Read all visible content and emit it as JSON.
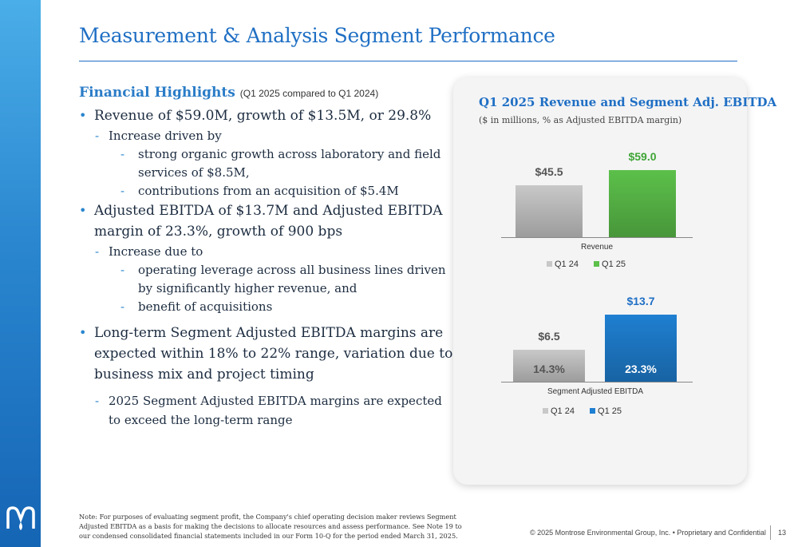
{
  "slide": {
    "title": "Measurement & Analysis Segment Performance",
    "highlights_heading": "Financial Highlights",
    "highlights_subheading": "(Q1 2025 compared to Q1 2024)",
    "bullets": {
      "b1": "Revenue of $59.0M, growth of $13.5M, or 29.8%",
      "b1_sub": "Increase driven by",
      "b1_sub_a": "strong organic growth across laboratory and field services of $8.5M,",
      "b1_sub_b": "contributions from an acquisition of $5.4M",
      "b2": "Adjusted EBITDA of $13.7M and Adjusted EBITDA margin of 23.3%, growth of 900 bps",
      "b2_sub": "Increase due to",
      "b2_sub_a": "operating leverage across all business lines driven by significantly higher revenue, and",
      "b2_sub_b": "benefit of acquisitions",
      "b3": "Long-term Segment Adjusted EBITDA margins are expected within 18% to 22% range, variation due to business mix and project timing",
      "b3_sub": "2025 Segment Adjusted EBITDA margins are expected to exceed the long-term range"
    },
    "note": "Note: For purposes of evaluating segment profit, the Company's chief operating decision maker reviews Segment Adjusted EBITDA as a basis for making the decisions to allocate resources and assess performance. See Note 19 to our condensed consolidated financial statements included in our Form 10-Q for the period ended March 31, 2025.",
    "footer": "© 2025 Montrose Environmental Group, Inc. • Proprietary and Confidential",
    "page_number": "13"
  },
  "chart_data": [
    {
      "type": "bar",
      "title": "Q1 2025 Revenue and Segment Adj. EBITDA",
      "subtitle": "($ in millions, % as Adjusted EBITDA margin)",
      "xlabel": "Revenue",
      "categories": [
        "Q1 24",
        "Q1 25"
      ],
      "values": [
        45.5,
        59.0
      ],
      "value_labels": [
        "$45.5",
        "$59.0"
      ],
      "legend": [
        "Q1 24",
        "Q1 25"
      ],
      "legend_position": "bottom",
      "colors": [
        "#c8c8c8",
        "#5cc04a"
      ],
      "label_colors": [
        "#555555",
        "#3fa535"
      ]
    },
    {
      "type": "bar",
      "xlabel": "Segment Adjusted EBITDA",
      "categories": [
        "Q1 24",
        "Q1 25"
      ],
      "values": [
        6.5,
        13.7
      ],
      "value_labels": [
        "$6.5",
        "$13.7"
      ],
      "margin_labels": [
        "14.3%",
        "23.3%"
      ],
      "legend": [
        "Q1 24",
        "Q1 25"
      ],
      "legend_position": "bottom",
      "colors": [
        "#c8c8c8",
        "#1f7fd1"
      ],
      "label_colors": [
        "#555555",
        "#1f6fc4"
      ]
    }
  ]
}
